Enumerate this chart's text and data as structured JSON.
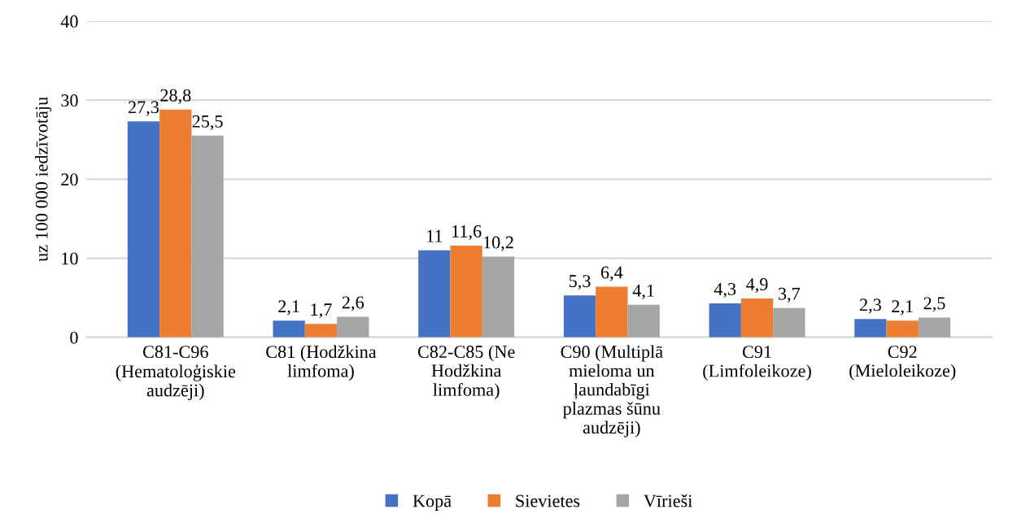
{
  "chart_data": {
    "type": "bar",
    "ylabel": "uz 100 000 iedzīvotāju",
    "categories": [
      "C81-C96 (Hematoloģiskie audzēji)",
      "C81 (Hodžkina limfoma)",
      "C82-C85 (Ne Hodžkina limfoma)",
      "C90 (Multiplā mieloma un ļaundabīgi plazmas šūnu audzēji)",
      "C91 (Limfoleikoze)",
      "C92 (Mieloleikoze)"
    ],
    "series": [
      {
        "name": "Kopā",
        "color": "#4472c4",
        "values": [
          27.3,
          2.1,
          11,
          5.3,
          4.3,
          2.3
        ],
        "value_labels": [
          "27,3",
          "2,1",
          "11",
          "5,3",
          "4,3",
          "2,3"
        ]
      },
      {
        "name": "Sievietes",
        "color": "#ed7d31",
        "values": [
          28.8,
          1.7,
          11.6,
          6.4,
          4.9,
          2.1
        ],
        "value_labels": [
          "28,8",
          "1,7",
          "11,6",
          "6,4",
          "4,9",
          "2,1"
        ]
      },
      {
        "name": "Vīrieši",
        "color": "#a5a5a5",
        "values": [
          25.5,
          2.6,
          10.2,
          4.1,
          3.7,
          2.5
        ],
        "value_labels": [
          "25,5",
          "2,6",
          "10,2",
          "4,1",
          "3,7",
          "2,5"
        ]
      }
    ],
    "ylim": [
      0,
      40
    ],
    "yticks": [
      0,
      10,
      20,
      30,
      40
    ],
    "grid": "y",
    "legend": "bottom"
  }
}
